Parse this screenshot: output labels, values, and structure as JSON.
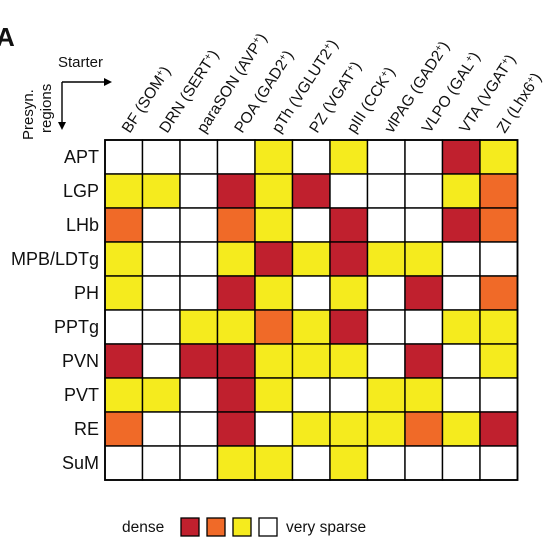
{
  "panel_label": "A",
  "chart_data": {
    "type": "heatmap",
    "corner_labels": {
      "columns_axis": "Starter",
      "rows_axis_line1": "Presyn.",
      "rows_axis_line2": "regions"
    },
    "columns": [
      {
        "name": "BF",
        "marker": "SOM"
      },
      {
        "name": "DRN",
        "marker": "SERT"
      },
      {
        "name": "paraSON",
        "marker": "AVP"
      },
      {
        "name": "POA",
        "marker": "GAD2"
      },
      {
        "name": "pTh",
        "marker": "VGLUT2"
      },
      {
        "name": "PZ",
        "marker": "VGAT"
      },
      {
        "name": "pIII",
        "marker": "CCK"
      },
      {
        "name": "vlPAG",
        "marker": "GAD2"
      },
      {
        "name": "VLPO",
        "marker": "GAL"
      },
      {
        "name": "VTA",
        "marker": "VGAT"
      },
      {
        "name": "ZI",
        "marker": "Lhx6"
      }
    ],
    "marker_suffix": "+",
    "rows": [
      "APT",
      "LGP",
      "LHb",
      "MPB/LDTg",
      "PH",
      "PPTg",
      "PVN",
      "PVT",
      "RE",
      "SuM"
    ],
    "levels_note": "3 = dense (red), 2 = orange, 1 = yellow, 0 = very sparse (white)",
    "values": [
      [
        0,
        0,
        0,
        0,
        1,
        0,
        1,
        0,
        0,
        3,
        1
      ],
      [
        1,
        1,
        0,
        3,
        1,
        3,
        0,
        0,
        0,
        1,
        2
      ],
      [
        2,
        0,
        0,
        2,
        1,
        0,
        3,
        0,
        0,
        3,
        2
      ],
      [
        1,
        0,
        0,
        1,
        3,
        1,
        3,
        1,
        1,
        0,
        0
      ],
      [
        1,
        0,
        0,
        3,
        1,
        0,
        1,
        0,
        3,
        0,
        2
      ],
      [
        0,
        0,
        1,
        1,
        2,
        1,
        3,
        0,
        0,
        1,
        1
      ],
      [
        3,
        0,
        3,
        3,
        1,
        1,
        1,
        0,
        3,
        0,
        1
      ],
      [
        1,
        1,
        0,
        3,
        1,
        0,
        0,
        1,
        1,
        0,
        0
      ],
      [
        2,
        0,
        0,
        3,
        0,
        1,
        1,
        1,
        2,
        1,
        3
      ],
      [
        0,
        0,
        0,
        1,
        1,
        0,
        1,
        0,
        0,
        0,
        0
      ]
    ],
    "legend": {
      "left_label": "dense",
      "right_label": "very sparse",
      "colors": [
        "#c0202e",
        "#f06a28",
        "#f5eb1e",
        "#ffffff"
      ]
    },
    "colors": {
      "3": "#c0202e",
      "2": "#f06a28",
      "1": "#f5eb1e",
      "0": "#ffffff"
    }
  }
}
